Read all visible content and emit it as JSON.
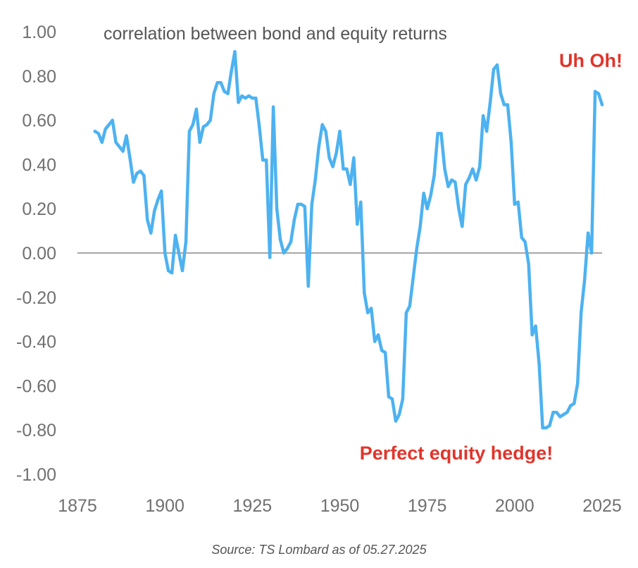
{
  "chart_data": {
    "type": "line",
    "title": "correlation between bond and equity returns",
    "xlabel": "",
    "ylabel": "",
    "xlim": [
      1875,
      2025
    ],
    "ylim": [
      -1.0,
      1.0
    ],
    "x_ticks": [
      "1875",
      "1900",
      "1925",
      "1950",
      "1975",
      "2000",
      "2025"
    ],
    "y_ticks": [
      "1.00",
      "0.80",
      "0.60",
      "0.40",
      "0.20",
      "0.00",
      "-0.20",
      "-0.40",
      "-0.60",
      "-0.80",
      "-1.00"
    ],
    "grid": false,
    "zero_line": true,
    "series": [
      {
        "color": "#4db2f0",
        "points": [
          [
            1880,
            0.55
          ],
          [
            1881,
            0.54
          ],
          [
            1882,
            0.5
          ],
          [
            1883,
            0.56
          ],
          [
            1884,
            0.58
          ],
          [
            1885,
            0.6
          ],
          [
            1886,
            0.5
          ],
          [
            1887,
            0.48
          ],
          [
            1888,
            0.46
          ],
          [
            1889,
            0.53
          ],
          [
            1890,
            0.43
          ],
          [
            1891,
            0.32
          ],
          [
            1892,
            0.36
          ],
          [
            1893,
            0.37
          ],
          [
            1894,
            0.35
          ],
          [
            1895,
            0.15
          ],
          [
            1896,
            0.09
          ],
          [
            1897,
            0.19
          ],
          [
            1898,
            0.24
          ],
          [
            1899,
            0.28
          ],
          [
            1900,
            0.0
          ],
          [
            1901,
            -0.08
          ],
          [
            1902,
            -0.09
          ],
          [
            1903,
            0.08
          ],
          [
            1904,
            0.0
          ],
          [
            1905,
            -0.08
          ],
          [
            1906,
            0.05
          ],
          [
            1907,
            0.55
          ],
          [
            1908,
            0.58
          ],
          [
            1909,
            0.65
          ],
          [
            1910,
            0.5
          ],
          [
            1911,
            0.57
          ],
          [
            1912,
            0.58
          ],
          [
            1913,
            0.6
          ],
          [
            1914,
            0.72
          ],
          [
            1915,
            0.77
          ],
          [
            1916,
            0.77
          ],
          [
            1917,
            0.73
          ],
          [
            1918,
            0.72
          ],
          [
            1919,
            0.82
          ],
          [
            1920,
            0.91
          ],
          [
            1921,
            0.68
          ],
          [
            1922,
            0.71
          ],
          [
            1923,
            0.7
          ],
          [
            1924,
            0.71
          ],
          [
            1925,
            0.7
          ],
          [
            1926,
            0.7
          ],
          [
            1927,
            0.57
          ],
          [
            1928,
            0.42
          ],
          [
            1929,
            0.42
          ],
          [
            1930,
            -0.02
          ],
          [
            1931,
            0.66
          ],
          [
            1932,
            0.2
          ],
          [
            1933,
            0.06
          ],
          [
            1934,
            0.0
          ],
          [
            1935,
            0.02
          ],
          [
            1936,
            0.05
          ],
          [
            1937,
            0.15
          ],
          [
            1938,
            0.22
          ],
          [
            1939,
            0.22
          ],
          [
            1940,
            0.21
          ],
          [
            1941,
            -0.15
          ],
          [
            1942,
            0.22
          ],
          [
            1943,
            0.33
          ],
          [
            1944,
            0.48
          ],
          [
            1945,
            0.58
          ],
          [
            1946,
            0.55
          ],
          [
            1947,
            0.43
          ],
          [
            1948,
            0.39
          ],
          [
            1949,
            0.45
          ],
          [
            1950,
            0.55
          ],
          [
            1951,
            0.38
          ],
          [
            1952,
            0.38
          ],
          [
            1953,
            0.31
          ],
          [
            1954,
            0.43
          ],
          [
            1955,
            0.13
          ],
          [
            1956,
            0.23
          ],
          [
            1957,
            -0.18
          ],
          [
            1958,
            -0.27
          ],
          [
            1959,
            -0.25
          ],
          [
            1960,
            -0.4
          ],
          [
            1961,
            -0.37
          ],
          [
            1962,
            -0.44
          ],
          [
            1963,
            -0.45
          ],
          [
            1964,
            -0.65
          ],
          [
            1965,
            -0.66
          ],
          [
            1966,
            -0.76
          ],
          [
            1967,
            -0.73
          ],
          [
            1968,
            -0.66
          ],
          [
            1969,
            -0.27
          ],
          [
            1970,
            -0.24
          ],
          [
            1971,
            -0.11
          ],
          [
            1972,
            0.02
          ],
          [
            1973,
            0.12
          ],
          [
            1974,
            0.27
          ],
          [
            1975,
            0.2
          ],
          [
            1976,
            0.26
          ],
          [
            1977,
            0.35
          ],
          [
            1978,
            0.54
          ],
          [
            1979,
            0.54
          ],
          [
            1980,
            0.38
          ],
          [
            1981,
            0.3
          ],
          [
            1982,
            0.33
          ],
          [
            1983,
            0.32
          ],
          [
            1984,
            0.2
          ],
          [
            1985,
            0.12
          ],
          [
            1986,
            0.31
          ],
          [
            1987,
            0.34
          ],
          [
            1988,
            0.38
          ],
          [
            1989,
            0.33
          ],
          [
            1990,
            0.39
          ],
          [
            1991,
            0.62
          ],
          [
            1992,
            0.55
          ],
          [
            1993,
            0.68
          ],
          [
            1994,
            0.83
          ],
          [
            1995,
            0.85
          ],
          [
            1996,
            0.72
          ],
          [
            1997,
            0.67
          ],
          [
            1998,
            0.67
          ],
          [
            1999,
            0.5
          ],
          [
            2000,
            0.22
          ],
          [
            2001,
            0.23
          ],
          [
            2002,
            0.07
          ],
          [
            2003,
            0.05
          ],
          [
            2004,
            -0.05
          ],
          [
            2005,
            -0.37
          ],
          [
            2006,
            -0.33
          ],
          [
            2007,
            -0.5
          ],
          [
            2008,
            -0.79
          ],
          [
            2009,
            -0.79
          ],
          [
            2010,
            -0.78
          ],
          [
            2011,
            -0.72
          ],
          [
            2012,
            -0.72
          ],
          [
            2013,
            -0.74
          ],
          [
            2014,
            -0.73
          ],
          [
            2015,
            -0.72
          ],
          [
            2016,
            -0.69
          ],
          [
            2017,
            -0.68
          ],
          [
            2018,
            -0.59
          ],
          [
            2019,
            -0.27
          ],
          [
            2020,
            -0.12
          ],
          [
            2021,
            0.09
          ],
          [
            2022,
            0.0
          ],
          [
            2023,
            0.73
          ],
          [
            2024,
            0.72
          ],
          [
            2025,
            0.67
          ]
        ]
      }
    ],
    "annotations": [
      {
        "text": "Uh Oh!",
        "color": "#e0352b"
      },
      {
        "text": "Perfect equity hedge!",
        "color": "#e0352b"
      }
    ]
  },
  "source": "Source: TS Lombard as of 05.27.2025"
}
